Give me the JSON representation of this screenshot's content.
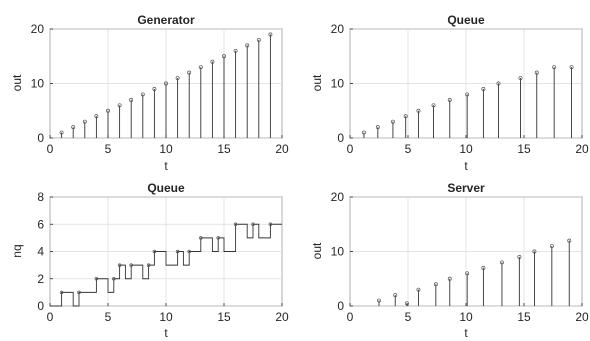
{
  "chart_data": [
    {
      "type": "stem",
      "title": "Generator",
      "xlabel": "t",
      "ylabel": "out",
      "xlim": [
        0,
        20
      ],
      "ylim": [
        0,
        20
      ],
      "xticks": [
        "0",
        "5",
        "10",
        "15",
        "20"
      ],
      "yticks": [
        "0",
        "10",
        "20"
      ],
      "grid": true,
      "x": [
        1,
        2,
        3,
        4,
        5,
        6,
        7,
        8,
        9,
        10,
        11,
        12,
        13,
        14,
        15,
        16,
        17,
        18,
        19
      ],
      "y": [
        1,
        2,
        3,
        4,
        5,
        6,
        7,
        8,
        9,
        10,
        11,
        12,
        13,
        14,
        15,
        16,
        17,
        18,
        19
      ]
    },
    {
      "type": "stem",
      "title": "Queue",
      "xlabel": "t",
      "ylabel": "out",
      "xlim": [
        0,
        20
      ],
      "ylim": [
        0,
        20
      ],
      "xticks": [
        "0",
        "5",
        "10",
        "15",
        "20"
      ],
      "yticks": [
        "0",
        "10",
        "20"
      ],
      "grid": true,
      "x": [
        1.2,
        2.4,
        3.7,
        4.8,
        5.9,
        7.2,
        8.6,
        10.1,
        11.5,
        12.8,
        14.7,
        16.1,
        17.6,
        19.1
      ],
      "y": [
        1,
        2,
        3,
        4,
        5,
        6,
        7,
        8,
        9,
        10,
        11,
        12,
        13,
        13
      ]
    },
    {
      "type": "step",
      "title": "Queue",
      "xlabel": "t",
      "ylabel": "nq",
      "xlim": [
        0,
        20
      ],
      "ylim": [
        0,
        8
      ],
      "xticks": [
        "0",
        "5",
        "10",
        "15",
        "20"
      ],
      "yticks": [
        "0",
        "2",
        "4",
        "6",
        "8"
      ],
      "grid": true,
      "x": [
        0,
        1,
        1,
        2,
        2,
        2.5,
        2.5,
        4,
        4,
        5,
        5,
        5.5,
        5.5,
        6,
        6,
        6.5,
        6.5,
        7,
        7,
        8,
        8,
        8.5,
        8.5,
        9,
        9,
        10,
        10,
        11,
        11,
        11.5,
        11.5,
        12,
        12,
        13,
        13,
        14,
        14,
        14.5,
        14.5,
        15,
        15,
        16,
        16,
        17,
        17,
        17.5,
        17.5,
        18,
        18,
        19,
        19,
        20
      ],
      "y": [
        0,
        0,
        1,
        1,
        0,
        0,
        1,
        1,
        2,
        2,
        1,
        1,
        2,
        2,
        3,
        3,
        2,
        2,
        3,
        3,
        2,
        2,
        3,
        3,
        4,
        4,
        3,
        3,
        4,
        4,
        3,
        3,
        4,
        4,
        5,
        5,
        4,
        4,
        5,
        5,
        4,
        4,
        6,
        6,
        5,
        5,
        6,
        6,
        5,
        5,
        6,
        6
      ]
    },
    {
      "type": "stem",
      "title": "Server",
      "xlabel": "t",
      "ylabel": "out",
      "xlim": [
        0,
        20
      ],
      "ylim": [
        0,
        20
      ],
      "xticks": [
        "0",
        "5",
        "10",
        "15",
        "20"
      ],
      "yticks": [
        "0",
        "10",
        "20"
      ],
      "grid": true,
      "x": [
        2.5,
        3.9,
        4.9,
        5.9,
        7.4,
        8.6,
        10.1,
        11.5,
        13.1,
        14.6,
        15.9,
        17.4,
        18.9
      ],
      "y": [
        1,
        2,
        0.5,
        3,
        4,
        5,
        6,
        7,
        8,
        9,
        10,
        11,
        12
      ]
    }
  ]
}
